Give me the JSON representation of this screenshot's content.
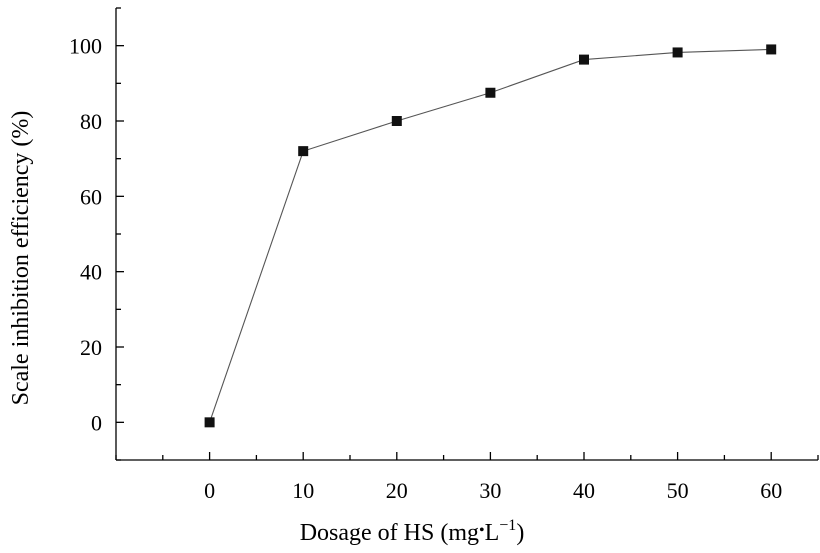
{
  "chart_data": {
    "type": "line",
    "title": "",
    "xlabel_main": "Dosage of HS (mg",
    "xlabel_dot": "•",
    "xlabel_unit": "L",
    "xlabel_sup": "−1",
    "xlabel_close": ")",
    "ylabel": "Scale inhibition efficiency (%)",
    "xlim": [
      -10,
      65
    ],
    "ylim": [
      -10,
      110
    ],
    "x_ticks": [
      0,
      10,
      20,
      30,
      40,
      50,
      60
    ],
    "y_ticks": [
      0,
      20,
      40,
      60,
      80,
      100
    ],
    "grid": false,
    "legend": "none",
    "series": [
      {
        "x": [
          0,
          10,
          20,
          30,
          40,
          50,
          60
        ],
        "values": [
          0,
          72,
          80,
          87.5,
          96.3,
          98.2,
          99
        ]
      }
    ],
    "colors": {
      "line": "#555555",
      "marker": "#111111"
    }
  }
}
